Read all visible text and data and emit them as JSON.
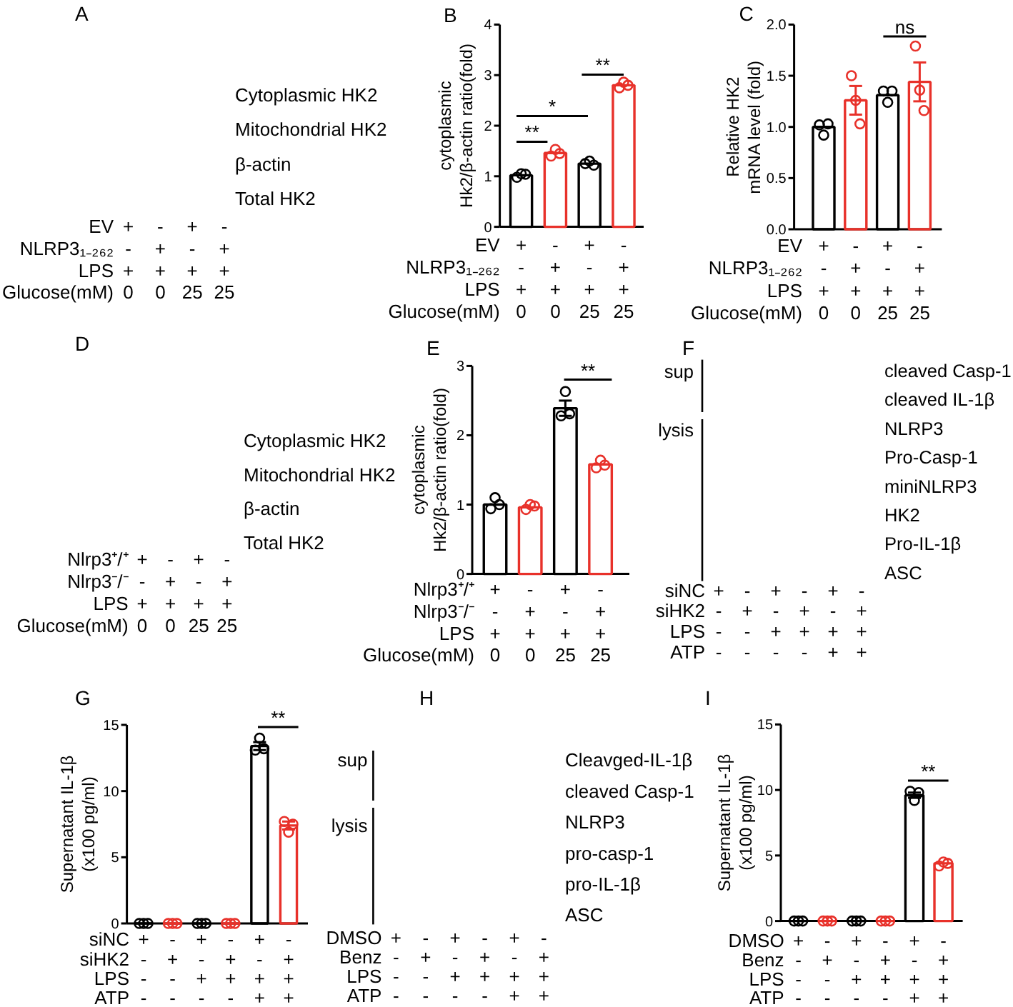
{
  "chart_data": [
    {
      "type": "other",
      "title": "A",
      "y_categories": [
        "Cytoplasmic HK2",
        "Mitochondrial HK2",
        "β-actin",
        "Total HK2"
      ],
      "xlabel": "EV\nNLRP3₁₋₂₆₂\nLPS\nGlucose(mM)",
      "categories": [
        "+\n-\n+\n0",
        "-\n+\n+\n0",
        "+\n-\n+\n25",
        "-\n+\n+\n25"
      ]
    },
    {
      "type": "bar",
      "title": "B",
      "ylabel": "cytoplasmic\nHk2/β-actin ratio(fold)",
      "xlabel": "EV\nNLRP3₁₋₂₆₂\nLPS\nGlucose(mM)",
      "categories": [
        "+\n-\n+\n0",
        "-\n+\n+\n0",
        "+\n-\n+\n25",
        "-\n+\n+\n25"
      ],
      "ylim": [
        0,
        4
      ],
      "yticks": [
        0,
        1,
        2,
        3,
        4
      ],
      "series": [
        {
          "type": "bar",
          "colors": [
            "#000000",
            "#e8312a",
            "#000000",
            "#e8312a"
          ],
          "values": [
            1.02,
            1.46,
            1.25,
            2.8
          ]
        },
        {
          "type": "scatter",
          "marker": "circle",
          "x": [
            "+\n-\n+\n0",
            "+\n-\n+\n0",
            "+\n-\n+\n0",
            "-\n+\n+\n0",
            "-\n+\n+\n0",
            "-\n+\n+\n0",
            "+\n-\n+\n25",
            "+\n-\n+\n25",
            "+\n-\n+\n25",
            "-\n+\n+\n25",
            "-\n+\n+\n25",
            "-\n+\n+\n25"
          ],
          "values": [
            0.98,
            1.05,
            1.04,
            1.4,
            1.53,
            1.45,
            1.25,
            1.3,
            1.22,
            2.75,
            2.86,
            2.8
          ],
          "colors": [
            "#000000",
            "#000000",
            "#000000",
            "#e8312a",
            "#e8312a",
            "#e8312a",
            "#000000",
            "#000000",
            "#000000",
            "#e8312a",
            "#e8312a",
            "#e8312a"
          ]
        }
      ],
      "annotations": [
        "**",
        "*",
        "**"
      ]
    },
    {
      "type": "bar",
      "title": "C",
      "ylabel": "Relative HK2\nmRNA level (fold)",
      "xlabel": "EV\nNLRP3₁₋₂₆₂\nLPS\nGlucose(mM)",
      "categories": [
        "+\n-\n+\n0",
        "-\n+\n+\n0",
        "+\n-\n+\n25",
        "-\n+\n+\n25"
      ],
      "ylim": [
        0,
        2
      ],
      "yticks": [
        {
          "value": 0,
          "label": "0.0"
        },
        0.5,
        {
          "value": 1,
          "label": "1.0"
        },
        1.5,
        {
          "value": 2,
          "label": "2.0"
        }
      ],
      "series": [
        {
          "type": "bar",
          "colors": [
            "#000000",
            "#e8312a",
            "#000000",
            "#e8312a"
          ],
          "values": [
            1.0,
            1.26,
            1.31,
            1.44
          ],
          "errors": [
            null,
            0.14,
            null,
            0.19
          ]
        },
        {
          "type": "scatter",
          "marker": "circle",
          "x": [
            "+\n-\n+\n0",
            "+\n-\n+\n0",
            "+\n-\n+\n0",
            "-\n+\n+\n0",
            "-\n+\n+\n0",
            "-\n+\n+\n0",
            "+\n-\n+\n25",
            "+\n-\n+\n25",
            "+\n-\n+\n25",
            "-\n+\n+\n25",
            "-\n+\n+\n25",
            "-\n+\n+\n25"
          ],
          "values": [
            1.02,
            0.92,
            1.03,
            1.5,
            1.26,
            1.03,
            1.35,
            1.24,
            1.35,
            1.79,
            1.36,
            1.16
          ],
          "colors": [
            "#000000",
            "#000000",
            "#000000",
            "#e8312a",
            "#e8312a",
            "#e8312a",
            "#000000",
            "#000000",
            "#000000",
            "#e8312a",
            "#e8312a",
            "#e8312a"
          ]
        }
      ],
      "annotations": [
        "ns"
      ]
    },
    {
      "type": "other",
      "title": "D",
      "y_categories": [
        "Cytoplasmic HK2",
        "Mitochondrial HK2",
        "β-actin",
        "Total HK2"
      ],
      "xlabel": "Nlrp3⁺/⁺\nNlrp3⁻/⁻\nLPS\nGlucose(mM)",
      "categories": [
        "+\n-\n+\n0",
        "-\n+\n+\n0",
        "+\n-\n+\n25",
        "-\n+\n+\n25"
      ]
    },
    {
      "type": "bar",
      "title": "E",
      "ylabel": "cytoplasmic\nHk2/β-actin ratio(fold)",
      "xlabel": "Nlrp3⁺/⁺\nNlrp3⁻/⁻\nLPS\nGlucose(mM)",
      "categories": [
        "+\n-\n+\n0",
        "-\n+\n+\n0",
        "+\n-\n+\n25",
        "-\n+\n+\n25"
      ],
      "ylim": [
        0,
        3
      ],
      "yticks": [
        0,
        1,
        2,
        3
      ],
      "series": [
        {
          "type": "bar",
          "colors": [
            "#000000",
            "#e8312a",
            "#000000",
            "#e8312a"
          ],
          "values": [
            1.0,
            0.96,
            2.39,
            1.58
          ],
          "errors": [
            null,
            null,
            0.11,
            null
          ]
        },
        {
          "type": "scatter",
          "marker": "circle",
          "x": [
            "+\n-\n+\n0",
            "+\n-\n+\n0",
            "+\n-\n+\n0",
            "-\n+\n+\n0",
            "-\n+\n+\n0",
            "-\n+\n+\n0",
            "+\n-\n+\n25",
            "+\n-\n+\n25",
            "+\n-\n+\n25",
            "-\n+\n+\n25",
            "-\n+\n+\n25",
            "-\n+\n+\n25"
          ],
          "values": [
            0.94,
            1.1,
            1.0,
            0.93,
            1.0,
            0.98,
            2.28,
            2.63,
            2.31,
            1.53,
            1.64,
            1.57
          ],
          "colors": [
            "#000000",
            "#000000",
            "#000000",
            "#e8312a",
            "#e8312a",
            "#e8312a",
            "#000000",
            "#000000",
            "#000000",
            "#e8312a",
            "#e8312a",
            "#e8312a"
          ]
        }
      ],
      "annotations": [
        "**"
      ]
    },
    {
      "type": "other",
      "title": "F",
      "y_categories": [
        "cleaved Casp-1",
        "cleaved IL-1β",
        "NLRP3",
        "Pro-Casp-1",
        "miniNLRP3",
        "HK2",
        "Pro-IL-1β",
        "ASC"
      ],
      "xlabel": "siNC\nsiHK2\nLPS\nATP",
      "categories": [
        "+\n-\n-\n-",
        "-\n+\n-\n-",
        "+\n-\n+\n-",
        "-\n+\n+\n-",
        "+\n-\n+\n+",
        "-\n+\n+\n+"
      ],
      "annotations": [
        "sup",
        "lysis"
      ]
    },
    {
      "type": "bar",
      "title": "G",
      "ylabel": "Supernatant IL-1β\n(x100 pg/ml)",
      "xlabel": "siNC\nsiHK2\nLPS\nATP",
      "categories": [
        "+\n-\n-\n-",
        "-\n+\n-\n-",
        "+\n-\n+\n-",
        "-\n+\n+\n-",
        "+\n-\n+\n+",
        "-\n+\n+\n+"
      ],
      "ylim": [
        0,
        15
      ],
      "yticks": [
        0,
        5,
        10,
        15
      ],
      "series": [
        {
          "type": "bar",
          "colors": [
            "#000000",
            "#e8312a",
            "#000000",
            "#e8312a",
            "#000000",
            "#e8312a"
          ],
          "values": [
            0,
            0,
            0,
            0,
            13.4,
            7.4
          ],
          "errors": [
            null,
            null,
            null,
            null,
            0.3,
            0.3
          ]
        },
        {
          "type": "scatter",
          "marker": "circle",
          "x": [
            "+\n-\n-\n-",
            "+\n-\n-\n-",
            "+\n-\n-\n-",
            "-\n+\n-\n-",
            "-\n+\n-\n-",
            "-\n+\n-\n-",
            "+\n-\n+\n-",
            "+\n-\n+\n-",
            "+\n-\n+\n-",
            "-\n+\n+\n-",
            "-\n+\n+\n-",
            "-\n+\n+\n-",
            "+\n-\n+\n+",
            "+\n-\n+\n+",
            "+\n-\n+\n+",
            "-\n+\n+\n+",
            "-\n+\n+\n+",
            "-\n+\n+\n+"
          ],
          "values": [
            0,
            0,
            0,
            0,
            0,
            0,
            0,
            0,
            0,
            0,
            0,
            0,
            13.1,
            14.0,
            13.2,
            7.7,
            6.9,
            7.5
          ],
          "colors": [
            "#000000",
            "#000000",
            "#000000",
            "#e8312a",
            "#e8312a",
            "#e8312a",
            "#000000",
            "#000000",
            "#000000",
            "#e8312a",
            "#e8312a",
            "#e8312a",
            "#000000",
            "#000000",
            "#000000",
            "#e8312a",
            "#e8312a",
            "#e8312a"
          ]
        }
      ],
      "annotations": [
        "**"
      ]
    },
    {
      "type": "other",
      "title": "H",
      "y_categories": [
        "Cleavged-IL-1β",
        "cleaved Casp-1",
        "NLRP3",
        "pro-casp-1",
        "pro-IL-1β",
        "ASC"
      ],
      "xlabel": "DMSO\nBenz\nLPS\nATP",
      "categories": [
        "+\n-\n-\n-",
        "-\n+\n-\n-",
        "+\n-\n+\n-",
        "-\n+\n+\n-",
        "+\n-\n+\n+",
        "-\n+\n+\n+"
      ],
      "annotations": [
        "sup",
        "lysis"
      ]
    },
    {
      "type": "bar",
      "title": "I",
      "ylabel": "Supernatant IL-1β\n(x100 pg/ml)",
      "xlabel": "DMSO\nBenz\nLPS\nATP",
      "categories": [
        "+\n-\n-\n-",
        "-\n+\n-\n-",
        "+\n-\n+\n-",
        "-\n+\n+\n-",
        "+\n-\n+\n+",
        "-\n+\n+\n+"
      ],
      "ylim": [
        0,
        15
      ],
      "yticks": [
        0,
        5,
        10,
        15
      ],
      "series": [
        {
          "type": "bar",
          "colors": [
            "#000000",
            "#e8312a",
            "#000000",
            "#e8312a",
            "#000000",
            "#e8312a"
          ],
          "values": [
            0,
            0,
            0,
            0,
            9.6,
            4.4
          ],
          "errors": [
            null,
            null,
            null,
            null,
            0.2,
            null
          ]
        },
        {
          "type": "scatter",
          "marker": "circle",
          "x": [
            "+\n-\n-\n-",
            "+\n-\n-\n-",
            "+\n-\n-\n-",
            "-\n+\n-\n-",
            "-\n+\n-\n-",
            "-\n+\n-\n-",
            "+\n-\n+\n-",
            "+\n-\n+\n-",
            "+\n-\n+\n-",
            "-\n+\n+\n-",
            "-\n+\n+\n-",
            "-\n+\n+\n-",
            "+\n-\n+\n+",
            "+\n-\n+\n+",
            "+\n-\n+\n+",
            "-\n+\n+\n+",
            "-\n+\n+\n+",
            "-\n+\n+\n+"
          ],
          "values": [
            0,
            0,
            0,
            0,
            0,
            0,
            0,
            0,
            0,
            0,
            0,
            0,
            9.9,
            9.2,
            9.8,
            4.2,
            4.5,
            4.4
          ],
          "colors": [
            "#000000",
            "#000000",
            "#000000",
            "#e8312a",
            "#e8312a",
            "#e8312a",
            "#000000",
            "#000000",
            "#000000",
            "#e8312a",
            "#e8312a",
            "#e8312a",
            "#000000",
            "#000000",
            "#000000",
            "#e8312a",
            "#e8312a",
            "#e8312a"
          ]
        }
      ],
      "annotations": [
        "**"
      ]
    }
  ]
}
